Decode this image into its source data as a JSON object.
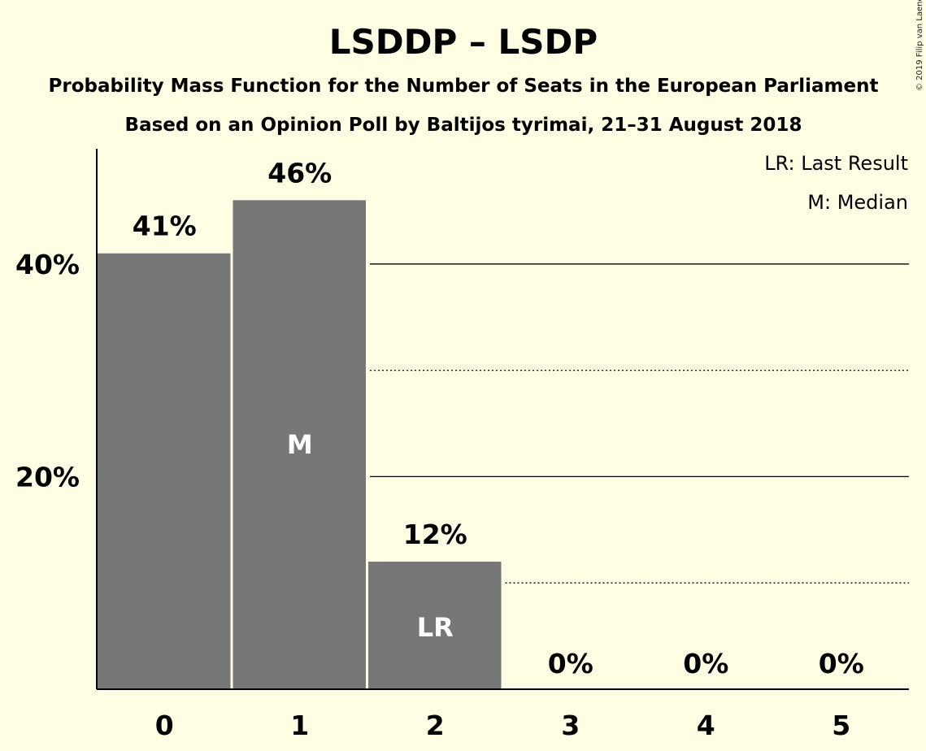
{
  "chart_data": {
    "type": "bar",
    "title": "LSDDP – LSDP",
    "subtitle": "Probability Mass Function for the Number of Seats in the European Parliament",
    "subtitle2": "Based on an Opinion Poll by Baltijos tyrimai, 21–31 August 2018",
    "categories": [
      "0",
      "1",
      "2",
      "3",
      "4",
      "5"
    ],
    "values": [
      41,
      46,
      12,
      0,
      0,
      0
    ],
    "value_labels": [
      "41%",
      "46%",
      "12%",
      "0%",
      "0%",
      "0%"
    ],
    "bar_markers": [
      "",
      "M",
      "LR",
      "",
      "",
      ""
    ],
    "ytick_values": [
      20,
      40
    ],
    "ytick_labels": [
      "20%",
      "40%"
    ],
    "dotted_grid": [
      10,
      30
    ],
    "ylim": [
      0,
      50
    ],
    "legend": [
      "LR: Last Result",
      "M: Median"
    ],
    "legend_position": "top-right",
    "bar_color": "#777777",
    "background_color": "#fffde4",
    "copyright": "© 2019 Filip van Laenen"
  }
}
